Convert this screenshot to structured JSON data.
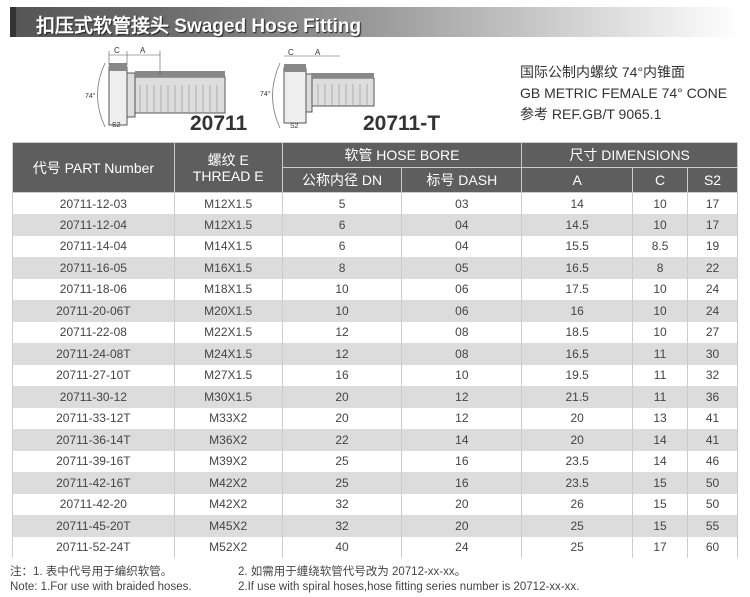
{
  "title": "扣压式软管接头  Swaged Hose Fitting",
  "models": [
    "20711",
    "20711-T"
  ],
  "diagram_labels": {
    "c": "C",
    "a": "A",
    "angle": "74°",
    "s2": "S2",
    "e": "E"
  },
  "spec": [
    "国际公制内螺纹 74°内锥面",
    "GB METRIC FEMALE 74° CONE",
    "参考 REF.GB/T 9065.1"
  ],
  "table": {
    "headers": {
      "part": "代号 PART Number",
      "thread1": "螺纹 E",
      "thread2": "THREAD E",
      "hose_bore": "软管 HOSE BORE",
      "dimensions": "尺寸 DIMENSIONS",
      "dn": "公称内径 DN",
      "dash": "标号 DASH",
      "a": "A",
      "c": "C",
      "s2": "S2"
    },
    "rows": [
      [
        "20711-12-03",
        "M12X1.5",
        "5",
        "03",
        "14",
        "10",
        "17"
      ],
      [
        "20711-12-04",
        "M12X1.5",
        "6",
        "04",
        "14.5",
        "10",
        "17"
      ],
      [
        "20711-14-04",
        "M14X1.5",
        "6",
        "04",
        "15.5",
        "8.5",
        "19"
      ],
      [
        "20711-16-05",
        "M16X1.5",
        "8",
        "05",
        "16.5",
        "8",
        "22"
      ],
      [
        "20711-18-06",
        "M18X1.5",
        "10",
        "06",
        "17.5",
        "10",
        "24"
      ],
      [
        "20711-20-06T",
        "M20X1.5",
        "10",
        "06",
        "16",
        "10",
        "24"
      ],
      [
        "20711-22-08",
        "M22X1.5",
        "12",
        "08",
        "18.5",
        "10",
        "27"
      ],
      [
        "20711-24-08T",
        "M24X1.5",
        "12",
        "08",
        "16.5",
        "11",
        "30"
      ],
      [
        "20711-27-10T",
        "M27X1.5",
        "16",
        "10",
        "19.5",
        "11",
        "32"
      ],
      [
        "20711-30-12",
        "M30X1.5",
        "20",
        "12",
        "21.5",
        "11",
        "36"
      ],
      [
        "20711-33-12T",
        "M33X2",
        "20",
        "12",
        "20",
        "13",
        "41"
      ],
      [
        "20711-36-14T",
        "M36X2",
        "22",
        "14",
        "20",
        "14",
        "41"
      ],
      [
        "20711-39-16T",
        "M39X2",
        "25",
        "16",
        "23.5",
        "14",
        "46"
      ],
      [
        "20711-42-16T",
        "M42X2",
        "25",
        "16",
        "23.5",
        "15",
        "50"
      ],
      [
        "20711-42-20",
        "M42X2",
        "32",
        "20",
        "26",
        "15",
        "50"
      ],
      [
        "20711-45-20T",
        "M45X2",
        "32",
        "20",
        "25",
        "15",
        "55"
      ],
      [
        "20711-52-24T",
        "M52X2",
        "40",
        "24",
        "25",
        "17",
        "60"
      ]
    ]
  },
  "notes": {
    "cn1": "注：1. 表中代号用于编织软管。",
    "cn2": "2. 如需用于缠绕软管代号改为 20712-xx-xx。",
    "en1": "Note: 1.For use with braided hoses.",
    "en2": "2.If use with spiral hoses,hose fitting series number is 20712-xx-xx."
  }
}
